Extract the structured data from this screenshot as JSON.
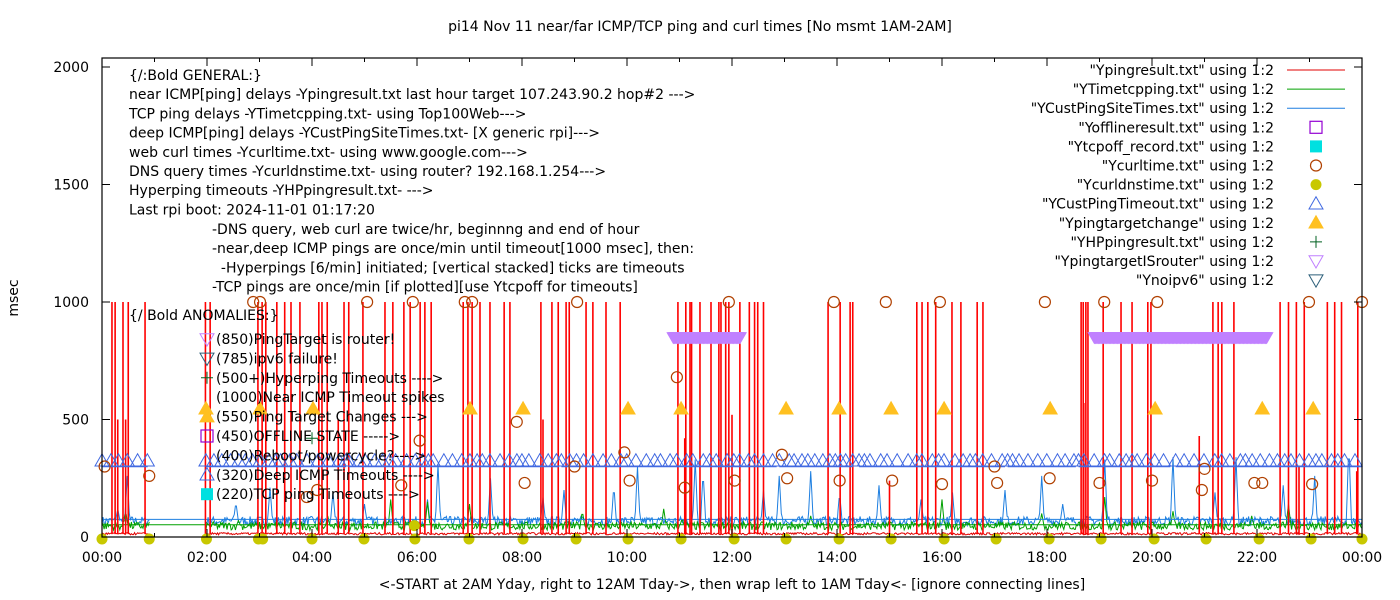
{
  "chart_data": {
    "type": "line",
    "title": "pi14 Nov 11  near/far ICMP/TCP ping and curl times [No msmt 1AM-2AM]",
    "xlabel": "<-START at 2AM Yday, right to 12AM Tday->, then wrap left to 1AM Tday<- [ignore connecting lines]",
    "ylabel": "msec",
    "xlim_hours": [
      0,
      24
    ],
    "ylim": [
      0,
      2000
    ],
    "x_ticks": [
      "00:00",
      "02:00",
      "04:00",
      "06:00",
      "08:00",
      "10:00",
      "12:00",
      "14:00",
      "16:00",
      "18:00",
      "20:00",
      "22:00",
      "00:00"
    ],
    "y_ticks": [
      0,
      500,
      1000,
      1500,
      2000
    ],
    "grid": false,
    "legend_position": "top-right",
    "annotations_general": [
      "{/:Bold GENERAL:}",
      "near ICMP[ping] delays -Ypingresult.txt last hour target 107.243.90.2 hop#2 --->",
      "TCP ping delays -YTimetcpping.txt- using Top100Web--->",
      "deep ICMP[ping] delays -YCustPingSiteTimes.txt- [X generic rpi]--->",
      "web curl times -Ycurltime.txt- using www.google.com--->",
      "DNS query times -Ycurldnstime.txt- using router? 192.168.1.254--->",
      "Hyperping timeouts -YHPpingresult.txt- --->",
      "Last rpi boot: 2024-11-01 01:17:20"
    ],
    "annotations_notes": [
      "-DNS query, web curl are twice/hr, beginnng and end of hour",
      "-near,deep ICMP pings are once/min until timeout[1000 msec], then:",
      "  -Hyperpings [6/min] initiated; [vertical stacked] ticks are timeouts",
      "-TCP pings are once/min [if plotted][use Ytcpoff for timeouts]"
    ],
    "anomalies_header": "{/ Bold ANOMALIES:}",
    "anomalies": [
      {
        "marker": "triangle-down-open",
        "color": "#c080ff",
        "label": "(850)PingTarget is router!"
      },
      {
        "marker": "triangle-down-open",
        "color": "#2c5f7a",
        "label": "(785)ipv6 failure!"
      },
      {
        "marker": "plus",
        "color": "#006020",
        "label": "(500+)Hyperping Timeouts ---->"
      },
      {
        "marker": "none",
        "color": "#000000",
        "label": "(1000)Near ICMP Timeout spikes"
      },
      {
        "marker": "triangle-up-filled",
        "color": "#ffc020",
        "label": "(550)Ping Target Changes --->"
      },
      {
        "marker": "square-open",
        "color": "#9400d3",
        "label": "(450)OFFLINE STATE ----->"
      },
      {
        "marker": "none",
        "color": "#000000",
        "label": "(400)Reboot/powercycle?---->"
      },
      {
        "marker": "triangle-up-open",
        "color": "#4169e1",
        "label": "(320)Deep ICMP Timeouts ---->"
      },
      {
        "marker": "square-filled",
        "color": "#00e0e0",
        "label": "(220)TCP ping Timeouts ---->"
      }
    ],
    "legend": [
      {
        "label": "\"Ypingresult.txt\" using 1:2",
        "style": "line",
        "color": "#e00000"
      },
      {
        "label": "\"YTimetcpping.txt\" using 1:2",
        "style": "line",
        "color": "#00a000"
      },
      {
        "label": "\"YCustPingSiteTimes.txt\" using 1:2",
        "style": "line",
        "color": "#1e7fe0"
      },
      {
        "label": "\"Yofflineresult.txt\" using 1:2",
        "style": "square-open",
        "color": "#9400d3"
      },
      {
        "label": "\"Ytcpoff_record.txt\" using 1:2",
        "style": "square-filled",
        "color": "#00e0e0"
      },
      {
        "label": "\"Ycurltime.txt\" using 1:2",
        "style": "circle-open",
        "color": "#b04000"
      },
      {
        "label": "\"Ycurldnstime.txt\" using 1:2",
        "style": "circle-filled",
        "color": "#c8c800"
      },
      {
        "label": "\"YCustPingTimeout.txt\" using 1:2",
        "style": "triangle-up-open",
        "color": "#4169e1"
      },
      {
        "label": "\"Ypingtargetchange\" using 1:2",
        "style": "triangle-up-filled",
        "color": "#ffc020"
      },
      {
        "label": "\"YHPpingresult.txt\" using 1:2",
        "style": "plus",
        "color": "#006020"
      },
      {
        "label": "\"YpingtargetISrouter\" using 1:2",
        "style": "triangle-down-open",
        "color": "#c080ff"
      },
      {
        "label": "\"Ynoipv6\" using 1:2",
        "style": "triangle-down-open",
        "color": "#2c5f7a"
      }
    ],
    "series": {
      "near_icmp_baseline_msec": 12,
      "near_icmp_timeout_spikes_hours": [
        0.19,
        0.25,
        0.4,
        0.5,
        0.82,
        1.97,
        2.06,
        2.97,
        3.05,
        3.12,
        3.33,
        3.48,
        3.6,
        3.77,
        4.13,
        4.19,
        4.29,
        4.61,
        4.7,
        4.97,
        5.39,
        5.54,
        5.75,
        5.87,
        6.06,
        6.15,
        6.27,
        6.88,
        6.97,
        7.05,
        7.2,
        7.39,
        7.66,
        7.77,
        8.36,
        8.57,
        8.69,
        8.84,
        8.9,
        9.22,
        9.35,
        9.6,
        9.87,
        10.97,
        11.12,
        11.2,
        11.23,
        11.39,
        11.6,
        11.75,
        11.79,
        11.88,
        11.94,
        12.15,
        12.33,
        12.43,
        12.49,
        12.6,
        13.83,
        14.06,
        14.25,
        14.3,
        15.52,
        15.62,
        15.73,
        15.88,
        16.19,
        16.36,
        16.67,
        16.78,
        18.65,
        18.69,
        18.74,
        18.78,
        19.07,
        19.41,
        19.62,
        19.92,
        19.98,
        21.16,
        21.26,
        21.33,
        21.56,
        22.44,
        22.6,
        22.75,
        22.9,
        23.34,
        23.48,
        23.61,
        23.92
      ],
      "near_icmp_partial_spikes": [
        [
          0.3,
          500
        ],
        [
          0.45,
          500
        ],
        [
          4.5,
          500
        ],
        [
          8.4,
          500
        ],
        [
          11.1,
          420
        ],
        [
          12.0,
          520
        ],
        [
          15.0,
          240
        ],
        [
          18.7,
          570
        ],
        [
          20.9,
          430
        ],
        [
          22.8,
          300
        ],
        [
          23.9,
          280
        ]
      ],
      "tcp_ping_baseline_msec": 40,
      "tcp_ping_peaks": [
        [
          0.45,
          110
        ],
        [
          2.6,
          70
        ],
        [
          4.3,
          90
        ],
        [
          5.5,
          160
        ],
        [
          6.2,
          150
        ],
        [
          7.0,
          140
        ],
        [
          9.15,
          110
        ],
        [
          10.7,
          120
        ],
        [
          11.05,
          80
        ],
        [
          13.5,
          90
        ],
        [
          16.0,
          160
        ],
        [
          17.9,
          100
        ],
        [
          19.1,
          170
        ],
        [
          20.4,
          110
        ],
        [
          21.9,
          90
        ],
        [
          22.6,
          140
        ]
      ],
      "deep_icmp_baseline_msec": 60,
      "deep_icmp_peaks": [
        [
          0.3,
          120
        ],
        [
          0.48,
          260
        ],
        [
          2.55,
          150
        ],
        [
          3.2,
          210
        ],
        [
          4.4,
          190
        ],
        [
          5.0,
          140
        ],
        [
          6.2,
          160
        ],
        [
          6.4,
          310
        ],
        [
          7.4,
          250
        ],
        [
          8.4,
          170
        ],
        [
          8.8,
          200
        ],
        [
          9.75,
          220
        ],
        [
          10.2,
          300
        ],
        [
          11.3,
          330
        ],
        [
          11.45,
          280
        ],
        [
          12.6,
          200
        ],
        [
          12.9,
          260
        ],
        [
          13.5,
          280
        ],
        [
          14.05,
          190
        ],
        [
          14.8,
          220
        ],
        [
          15.6,
          160
        ],
        [
          16.2,
          190
        ],
        [
          17.2,
          200
        ],
        [
          17.9,
          260
        ],
        [
          18.3,
          140
        ],
        [
          19.1,
          330
        ],
        [
          20.4,
          340
        ],
        [
          21.2,
          190
        ],
        [
          21.6,
          340
        ],
        [
          22.5,
          220
        ],
        [
          23.1,
          260
        ],
        [
          23.75,
          400
        ]
      ],
      "curl_time_points": [
        [
          0.05,
          300
        ],
        [
          0.9,
          260
        ],
        [
          2.88,
          1000
        ],
        [
          3.01,
          1000
        ],
        [
          3.9,
          170
        ],
        [
          4.1,
          200
        ],
        [
          5.05,
          1000
        ],
        [
          5.7,
          220
        ],
        [
          5.92,
          1000
        ],
        [
          6.05,
          410
        ],
        [
          6.91,
          1000
        ],
        [
          7.05,
          1000
        ],
        [
          7.9,
          490
        ],
        [
          8.05,
          230
        ],
        [
          9.0,
          300
        ],
        [
          9.05,
          1000
        ],
        [
          9.95,
          360
        ],
        [
          10.05,
          240
        ],
        [
          10.95,
          680
        ],
        [
          11.1,
          210
        ],
        [
          11.94,
          1000
        ],
        [
          12.05,
          240
        ],
        [
          12.95,
          350
        ],
        [
          13.05,
          250
        ],
        [
          13.94,
          1000
        ],
        [
          14.05,
          240
        ],
        [
          14.93,
          1000
        ],
        [
          15.05,
          240
        ],
        [
          15.96,
          1000
        ],
        [
          16.0,
          225
        ],
        [
          17.0,
          300
        ],
        [
          17.05,
          230
        ],
        [
          17.96,
          1000
        ],
        [
          18.05,
          250
        ],
        [
          19.0,
          230
        ],
        [
          19.09,
          1000
        ],
        [
          20.0,
          240
        ],
        [
          20.1,
          1000
        ],
        [
          20.95,
          200
        ],
        [
          21.0,
          290
        ],
        [
          21.95,
          230
        ],
        [
          22.1,
          230
        ],
        [
          22.99,
          1000
        ],
        [
          23.05,
          225
        ],
        [
          24.0,
          1000
        ]
      ],
      "dns_points_hours": [
        0.0,
        0.9,
        1.99,
        2.98,
        3.06,
        4.0,
        4.99,
        5.96,
        6.99,
        8.02,
        9.03,
        10.02,
        11.03,
        12.04,
        13.03,
        14.04,
        15.03,
        16.04,
        17.03,
        18.04,
        19.03,
        20.04,
        21.03,
        22.04,
        23.03,
        24.0
      ],
      "dns_points_msec": 0,
      "dns_outlier": [
        [
          5.95,
          40
        ]
      ],
      "deep_icmp_timeout_ranges_hours": [
        [
          0.0,
          0.87
        ],
        [
          1.98,
          4.65
        ],
        [
          4.7,
          8.7
        ],
        [
          8.75,
          12.85
        ],
        [
          12.9,
          14.3
        ],
        [
          14.42,
          17.2
        ],
        [
          17.25,
          18.55
        ],
        [
          18.6,
          20.35
        ],
        [
          20.45,
          24.0
        ]
      ],
      "deep_icmp_timeout_msec": 320,
      "ping_target_change_hours": [
        1.98,
        3.01,
        4.02,
        7.01,
        8.02,
        10.02,
        11.03,
        13.03,
        14.04,
        15.03,
        16.04,
        18.06,
        20.06,
        22.1,
        23.07
      ],
      "ping_target_change_msec": 550,
      "ping_target_is_router_ranges_hours": [
        [
          10.88,
          12.17
        ],
        [
          18.9,
          22.2
        ]
      ],
      "ping_target_is_router_msec": 850,
      "hyperping_timeouts": [
        [
          4.0,
          420
        ]
      ],
      "offline_points": [],
      "tcp_off_points": []
    }
  }
}
